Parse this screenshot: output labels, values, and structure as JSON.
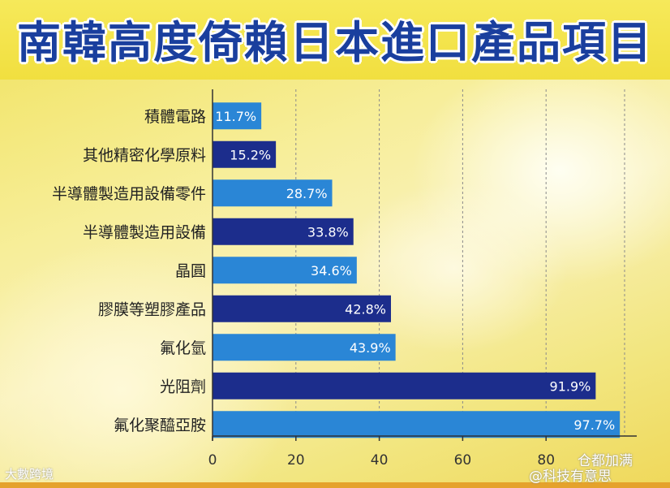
{
  "chart_data": {
    "type": "bar",
    "orientation": "horizontal",
    "title": "南韓高度倚賴日本進口產品項目",
    "categories": [
      "積體電路",
      "其他精密化學原料",
      "半導體製造用設備零件",
      "半導體製造用設備",
      "晶圓",
      "膠膜等塑膠產品",
      "氟化氫",
      "光阻劑",
      "氟化聚醯亞胺"
    ],
    "values": [
      11.7,
      15.2,
      28.7,
      33.8,
      34.6,
      42.8,
      43.9,
      91.9,
      97.7
    ],
    "value_labels": [
      "11.7%",
      "15.2%",
      "28.7%",
      "33.8%",
      "34.6%",
      "42.8%",
      "43.9%",
      "91.9%",
      "97.7%"
    ],
    "xlim": [
      0,
      100
    ],
    "xticks": [
      "0",
      "20",
      "40",
      "60",
      "80"
    ],
    "grid": "vertical dashed",
    "colors": {
      "light": "#2a86d6",
      "dark": "#1c2d8c"
    }
  },
  "watermarks": {
    "left": "大數跨境",
    "right_top": "仓都加满",
    "right_bottom": "@科技有意思"
  }
}
